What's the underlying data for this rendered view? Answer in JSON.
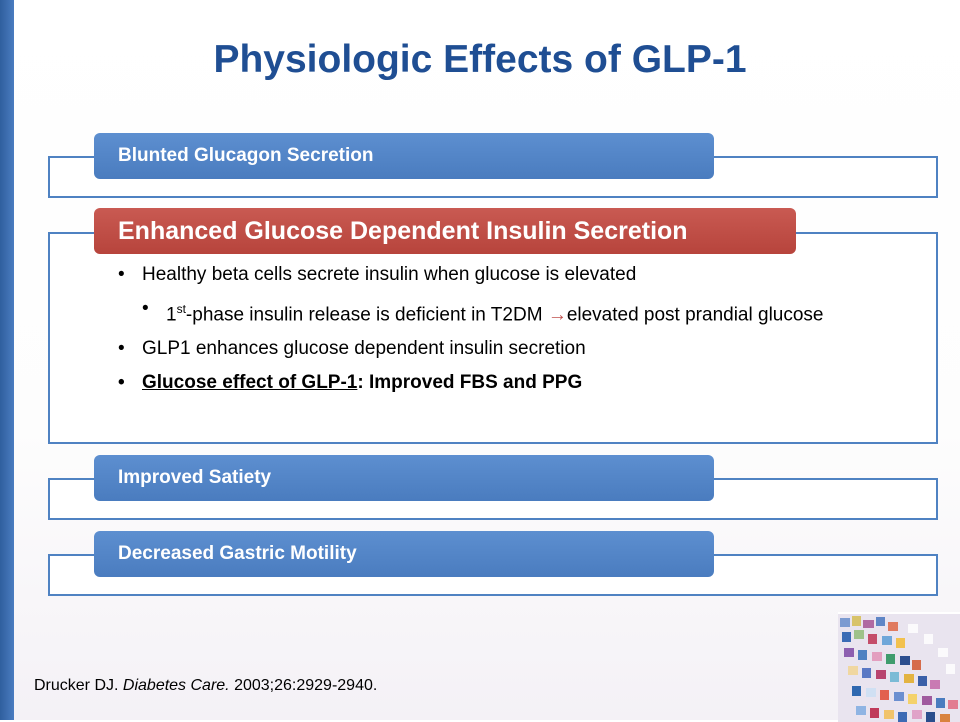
{
  "slide": {
    "title": "Physiologic Effects of GLP-1",
    "sections": [
      {
        "heading": "Blunted Glucagon Secretion"
      },
      {
        "heading": "Enhanced Glucose Dependent Insulin Secretion",
        "bullets": {
          "b1": "Healthy beta cells secrete insulin when glucose is elevated",
          "b2_pre": "1",
          "b2_sup": "st",
          "b2_mid": "-phase insulin release is deficient in T2DM ",
          "b2_arrow": "→",
          "b2_post": "elevated post prandial glucose",
          "b3": "GLP1 enhances glucose dependent insulin secretion",
          "b4_link": "Glucose effect of GLP-1",
          "b4_rest": ": Improved FBS and PPG"
        }
      },
      {
        "heading": "Improved Satiety"
      },
      {
        "heading": "Decreased Gastric Motility"
      }
    ],
    "citation": {
      "author": "Drucker DJ. ",
      "journal": "Diabetes Care.",
      "details": " 2003;26:2929-2940."
    }
  },
  "colors": {
    "title": "#1f4e93",
    "tab_blue": "#4f82c2",
    "tab_red": "#b7443c",
    "frame": "#4f82c2"
  }
}
